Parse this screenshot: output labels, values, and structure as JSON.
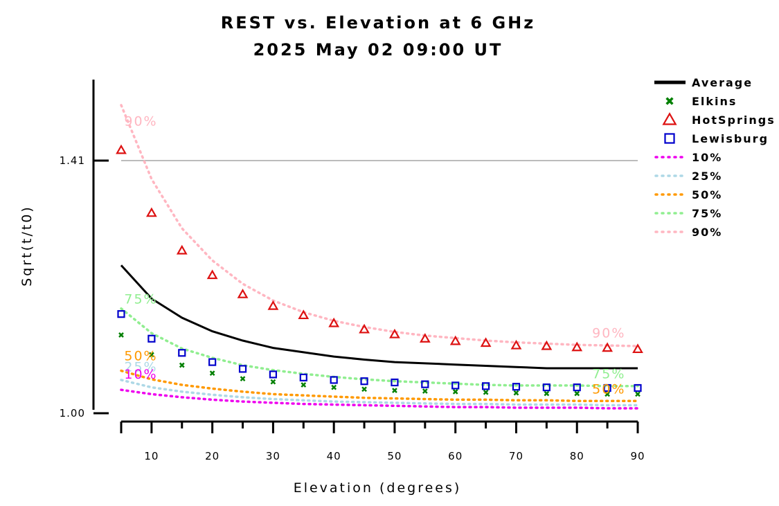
{
  "chart_data": {
    "type": "line",
    "title": "REST vs. Elevation at 6 GHz",
    "subtitle": "2025 May 02 09:00 UT",
    "xlabel": "Elevation (degrees)",
    "ylabel": "Sqrt(t/t0)",
    "xlim": [
      3,
      93
    ],
    "ylim": [
      0.97,
      1.53
    ],
    "x_ticks": [
      10,
      20,
      30,
      40,
      50,
      60,
      70,
      80,
      90
    ],
    "y_ticks": [
      {
        "value": 1.0,
        "label": "1.00"
      },
      {
        "value": 1.41,
        "label": "1.41"
      }
    ],
    "reference_line": {
      "value": 1.41,
      "color": "#bbbbbb"
    },
    "grid": false,
    "legend_position": "top-right",
    "x": [
      5,
      10,
      15,
      20,
      25,
      30,
      35,
      40,
      45,
      50,
      55,
      60,
      65,
      70,
      75,
      80,
      85,
      90
    ],
    "series": [
      {
        "name": "Average",
        "style": "line",
        "color": "#000000",
        "values": [
          1.24,
          1.186,
          1.155,
          1.133,
          1.118,
          1.106,
          1.099,
          1.092,
          1.087,
          1.083,
          1.081,
          1.079,
          1.077,
          1.075,
          1.073,
          1.073,
          1.073,
          1.073
        ]
      },
      {
        "name": "Elkins",
        "style": "x",
        "color": "#008000",
        "values": [
          1.127,
          1.095,
          1.078,
          1.065,
          1.056,
          1.051,
          1.046,
          1.042,
          1.039,
          1.037,
          1.036,
          1.035,
          1.034,
          1.033,
          1.032,
          1.032,
          1.031,
          1.031
        ]
      },
      {
        "name": "HotSprings",
        "style": "triangle",
        "color": "#dd1111",
        "values": [
          1.427,
          1.325,
          1.264,
          1.224,
          1.193,
          1.174,
          1.159,
          1.146,
          1.136,
          1.128,
          1.121,
          1.117,
          1.114,
          1.11,
          1.109,
          1.107,
          1.106,
          1.104
        ]
      },
      {
        "name": "Lewisburg",
        "style": "square",
        "color": "#0000cc",
        "values": [
          1.161,
          1.121,
          1.098,
          1.083,
          1.072,
          1.063,
          1.058,
          1.054,
          1.052,
          1.05,
          1.047,
          1.045,
          1.044,
          1.043,
          1.042,
          1.042,
          1.041,
          1.041
        ]
      },
      {
        "name": "10%",
        "style": "dotted",
        "color": "#ee00ee",
        "values": [
          1.038,
          1.031,
          1.026,
          1.022,
          1.019,
          1.017,
          1.015,
          1.014,
          1.013,
          1.012,
          1.011,
          1.01,
          1.01,
          1.009,
          1.009,
          1.009,
          1.008,
          1.008
        ]
      },
      {
        "name": "25%",
        "style": "dotted",
        "color": "#add8e6",
        "values": [
          1.054,
          1.042,
          1.035,
          1.03,
          1.026,
          1.023,
          1.021,
          1.019,
          1.018,
          1.017,
          1.016,
          1.015,
          1.015,
          1.014,
          1.014,
          1.014,
          1.013,
          1.013
        ]
      },
      {
        "name": "50%",
        "style": "dotted",
        "color": "#ff9900",
        "values": [
          1.069,
          1.055,
          1.046,
          1.04,
          1.035,
          1.031,
          1.029,
          1.027,
          1.025,
          1.024,
          1.023,
          1.022,
          1.022,
          1.021,
          1.021,
          1.02,
          1.02,
          1.02
        ]
      },
      {
        "name": "75%",
        "style": "dotted",
        "color": "#90ee90",
        "values": [
          1.17,
          1.13,
          1.105,
          1.09,
          1.078,
          1.07,
          1.064,
          1.059,
          1.055,
          1.052,
          1.05,
          1.048,
          1.046,
          1.045,
          1.045,
          1.045,
          1.044,
          1.044
        ]
      },
      {
        "name": "90%",
        "style": "dotted",
        "color": "#ffb6c1",
        "values": [
          1.5,
          1.38,
          1.3,
          1.248,
          1.21,
          1.183,
          1.164,
          1.15,
          1.14,
          1.132,
          1.126,
          1.122,
          1.118,
          1.115,
          1.113,
          1.111,
          1.11,
          1.109
        ]
      }
    ],
    "curve_labels": [
      {
        "text": "90%",
        "series": "90%",
        "x": 5.5,
        "y": 1.467
      },
      {
        "text": "90%",
        "series": "90%",
        "x": 82.5,
        "y": 1.123
      },
      {
        "text": "75%",
        "series": "75%",
        "x": 5.5,
        "y": 1.178
      },
      {
        "text": "75%",
        "series": "75%",
        "x": 82.5,
        "y": 1.057
      },
      {
        "text": "50%",
        "series": "50%",
        "x": 5.5,
        "y": 1.086
      },
      {
        "text": "50%",
        "series": "50%",
        "x": 82.5,
        "y": 1.032
      },
      {
        "text": "25%",
        "series": "25%",
        "x": 5.5,
        "y": 1.068
      },
      {
        "text": "10%",
        "series": "10%",
        "x": 5.5,
        "y": 1.056
      }
    ]
  }
}
